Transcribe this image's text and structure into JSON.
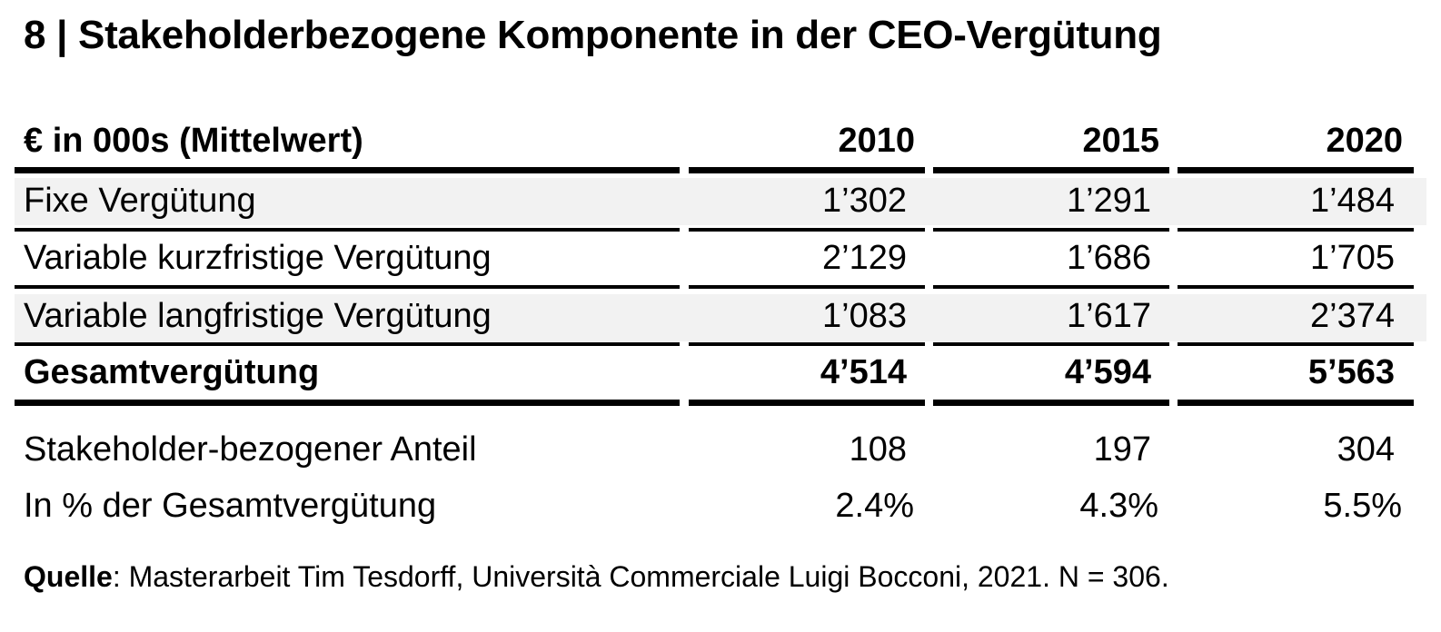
{
  "title": "8 | Stakeholderbezogene Komponente in der CEO-Vergütung",
  "header": {
    "label": "€ in 000s (Mittelwert)",
    "years": [
      "2010",
      "2015",
      "2020"
    ]
  },
  "rows": [
    {
      "label": "Fixe Vergütung",
      "values": [
        "1’302",
        "1’291",
        "1’484"
      ]
    },
    {
      "label": "Variable kurzfristige Vergütung",
      "values": [
        "2’129",
        "1’686",
        "1’705"
      ]
    },
    {
      "label": "Variable langfristige Vergütung",
      "values": [
        "1’083",
        "1’617",
        "2’374"
      ]
    },
    {
      "label": "Gesamtvergütung",
      "values": [
        "4’514",
        "4’594",
        "5’563"
      ]
    },
    {
      "label": "Stakeholder-bezogener Anteil",
      "values": [
        "108",
        "197",
        "304"
      ]
    },
    {
      "label": "In % der Gesamtvergütung",
      "values": [
        "2.4%",
        "4.3%",
        "5.5%"
      ]
    }
  ],
  "source": {
    "label": "Quelle",
    "text": ": Masterarbeit Tim Tesdorff, Università Commerciale Luigi Bocconi, 2021. N = 306."
  },
  "chart_data": {
    "type": "table",
    "title": "8 | Stakeholderbezogene Komponente in der CEO-Vergütung",
    "columns": [
      "€ in 000s (Mittelwert)",
      "2010",
      "2015",
      "2020"
    ],
    "rows": [
      [
        "Fixe Vergütung",
        1302,
        1291,
        1484
      ],
      [
        "Variable kurzfristige Vergütung",
        2129,
        1686,
        1705
      ],
      [
        "Variable langfristige Vergütung",
        1083,
        1617,
        2374
      ],
      [
        "Gesamtvergütung",
        4514,
        4594,
        5563
      ],
      [
        "Stakeholder-bezogener Anteil",
        108,
        197,
        304
      ],
      [
        "In % der Gesamtvergütung",
        "2.4%",
        "4.3%",
        "5.5%"
      ]
    ]
  }
}
